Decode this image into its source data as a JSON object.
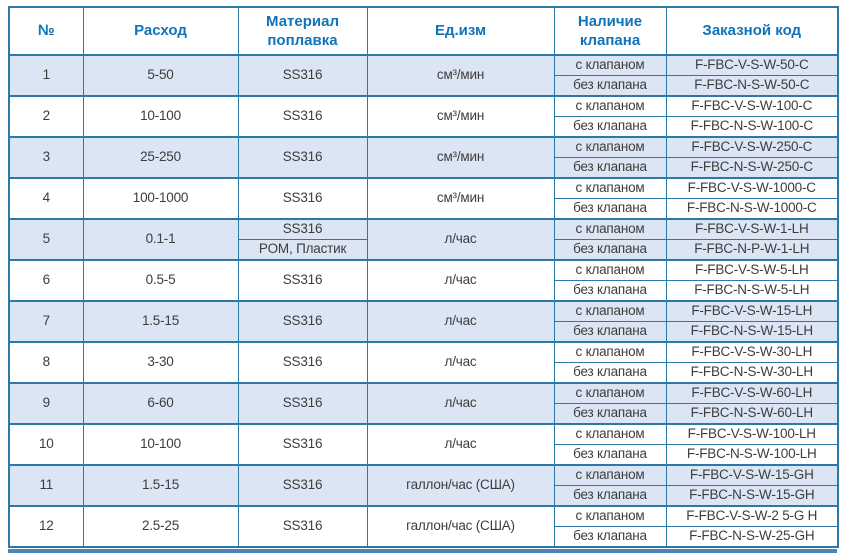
{
  "colors": {
    "border": "#2c79a8",
    "row_alt_background": "#dbe5f3",
    "header_text": "#1173b9",
    "body_text": "#3d3d3d",
    "bottom_bar": "#4b84b8"
  },
  "table": {
    "columns": [
      "№",
      "Расход",
      "Материал поплавка",
      "Ед.изм",
      "Наличие клапана",
      "Заказной код"
    ],
    "rows": [
      {
        "num": "1",
        "flow": "5-50",
        "material": "SS316",
        "unit": "см³/мин",
        "variants": [
          {
            "valve": "с клапаном",
            "code": "F-FBC-V-S-W-50-C"
          },
          {
            "valve": "без клапана",
            "code": "F-FBC-N-S-W-50-C"
          }
        ]
      },
      {
        "num": "2",
        "flow": "10-100",
        "material": "SS316",
        "unit": "см³/мин",
        "variants": [
          {
            "valve": "с клапаном",
            "code": "F-FBC-V-S-W-100-C"
          },
          {
            "valve": "без клапана",
            "code": "F-FBC-N-S-W-100-C"
          }
        ]
      },
      {
        "num": "3",
        "flow": "25-250",
        "material": "SS316",
        "unit": "см³/мин",
        "variants": [
          {
            "valve": "с клапаном",
            "code": "F-FBC-V-S-W-250-C"
          },
          {
            "valve": "без клапана",
            "code": "F-FBC-N-S-W-250-C"
          }
        ]
      },
      {
        "num": "4",
        "flow": "100-1000",
        "material": "SS316",
        "unit": "см³/мин",
        "variants": [
          {
            "valve": "с клапаном",
            "code": "F-FBC-V-S-W-1000-C"
          },
          {
            "valve": "без клапана",
            "code": "F-FBC-N-S-W-1000-C"
          }
        ]
      },
      {
        "num": "5",
        "flow": "0.1-1",
        "material": [
          "SS316",
          "POM, Пластик"
        ],
        "unit": "л/час",
        "variants": [
          {
            "valve": "с клапаном",
            "code": "F-FBC-V-S-W-1-LH"
          },
          {
            "valve": "без клапана",
            "code": "F-FBC-N-P-W-1-LH"
          }
        ]
      },
      {
        "num": "6",
        "flow": "0.5-5",
        "material": "SS316",
        "unit": "л/час",
        "variants": [
          {
            "valve": "с клапаном",
            "code": "F-FBC-V-S-W-5-LH"
          },
          {
            "valve": "без клапана",
            "code": "F-FBC-N-S-W-5-LH"
          }
        ]
      },
      {
        "num": "7",
        "flow": "1.5-15",
        "material": "SS316",
        "unit": "л/час",
        "variants": [
          {
            "valve": "с клапаном",
            "code": "F-FBC-V-S-W-15-LH"
          },
          {
            "valve": "без клапана",
            "code": "F-FBC-N-S-W-15-LH"
          }
        ]
      },
      {
        "num": "8",
        "flow": "3-30",
        "material": "SS316",
        "unit": "л/час",
        "variants": [
          {
            "valve": "с клапаном",
            "code": "F-FBC-V-S-W-30-LH"
          },
          {
            "valve": "без клапана",
            "code": "F-FBC-N-S-W-30-LH"
          }
        ]
      },
      {
        "num": "9",
        "flow": "6-60",
        "material": "SS316",
        "unit": "л/час",
        "variants": [
          {
            "valve": "с клапаном",
            "code": "F-FBC-V-S-W-60-LH"
          },
          {
            "valve": "без клапана",
            "code": "F-FBC-N-S-W-60-LH"
          }
        ]
      },
      {
        "num": "10",
        "flow": "10-100",
        "material": "SS316",
        "unit": "л/час",
        "variants": [
          {
            "valve": "с клапаном",
            "code": "F-FBC-V-S-W-100-LH"
          },
          {
            "valve": "без клапана",
            "code": "F-FBC-N-S-W-100-LH"
          }
        ]
      },
      {
        "num": "11",
        "flow": "1.5-15",
        "material": "SS316",
        "unit": "галлон/час (США)",
        "variants": [
          {
            "valve": "с клапаном",
            "code": "F-FBC-V-S-W-15-GH"
          },
          {
            "valve": "без клапана",
            "code": "F-FBC-N-S-W-15-GH"
          }
        ]
      },
      {
        "num": "12",
        "flow": "2.5-25",
        "material": "SS316",
        "unit": "галлон/час (США)",
        "variants": [
          {
            "valve": "с клапаном",
            "code": "F-FBC-V-S-W-2 5-G H"
          },
          {
            "valve": "без клапана",
            "code": "F-FBC-N-S-W-25-GH"
          }
        ]
      }
    ]
  }
}
